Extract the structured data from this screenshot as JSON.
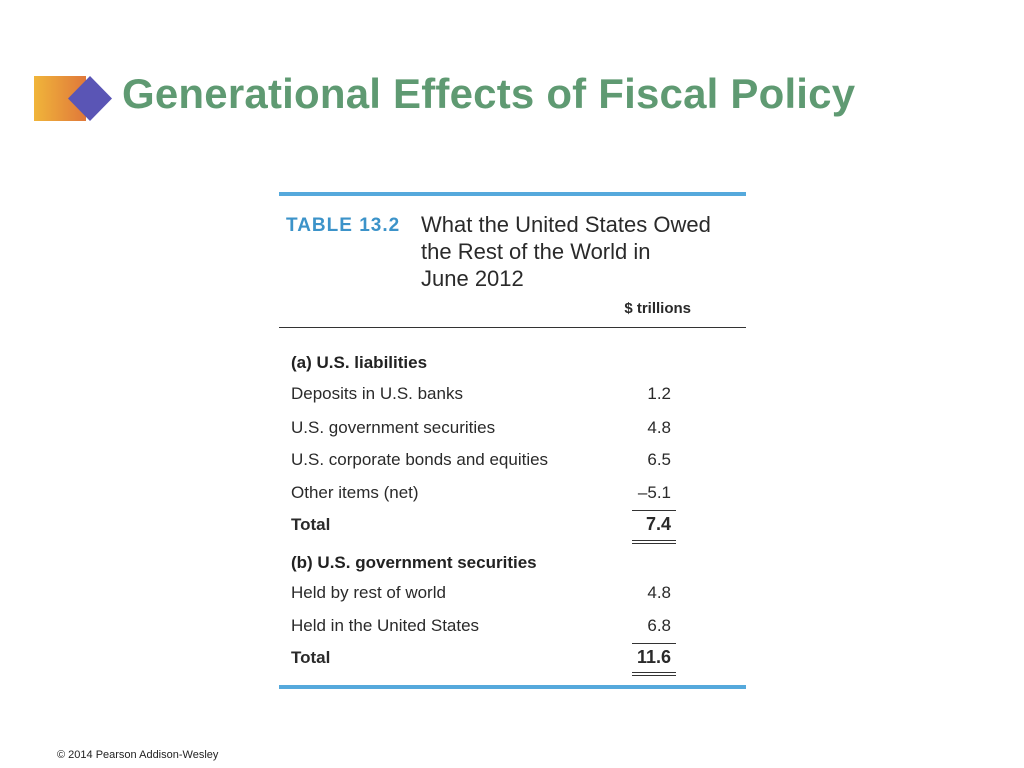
{
  "slide": {
    "title": "Generational Effects of Fiscal Policy",
    "footer": "© 2014 Pearson Addison-Wesley",
    "colors": {
      "title": "#5f9a72",
      "table_accent": "#55a9dc",
      "table_label": "#3c93c9",
      "deco_gradient_start": "#f0b53a",
      "deco_gradient_end": "#e0783a",
      "deco_diamond": "#5a55b5"
    }
  },
  "table": {
    "label": "TABLE 13.2",
    "title_lines": [
      "What the United States Owed",
      "the Rest of the World in",
      "June 2012"
    ],
    "unit": "$ trillions",
    "section_a": {
      "heading": "(a) U.S. liabilities",
      "rows": [
        {
          "label": "Deposits in U.S. banks",
          "value": "1.2"
        },
        {
          "label": "U.S. government securities",
          "value": "4.8"
        },
        {
          "label": "U.S. corporate bonds and equities",
          "value": "6.5"
        },
        {
          "label": "Other items (net)",
          "value": "–5.1"
        }
      ],
      "total_label": "Total",
      "total_value": "7.4"
    },
    "section_b": {
      "heading": "(b) U.S. government securities",
      "rows": [
        {
          "label": "Held by rest of world",
          "value": "4.8"
        },
        {
          "label": "Held in the United States",
          "value": "6.8"
        }
      ],
      "total_label": "Total",
      "total_value": "11.6"
    }
  }
}
